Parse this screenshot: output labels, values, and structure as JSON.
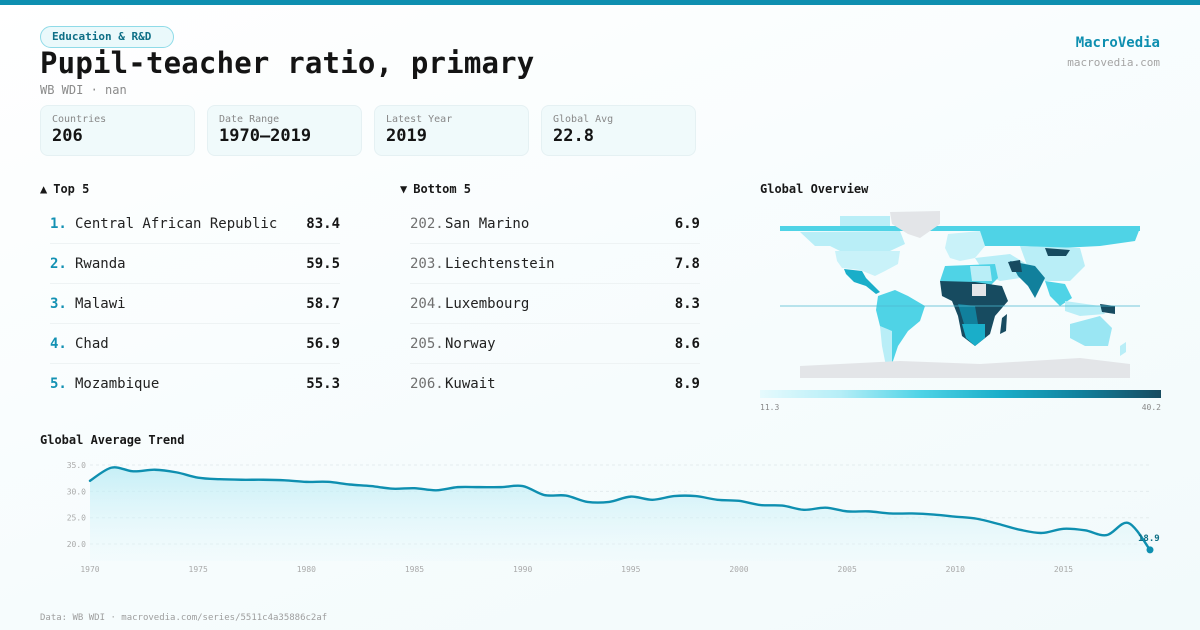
{
  "header": {
    "category_badge": "Education & R&D",
    "title": "Pupil-teacher ratio, primary",
    "subtitle": "WB WDI · nan"
  },
  "brand": {
    "name": "MacroVedia",
    "url": "macrovedia.com"
  },
  "stats": [
    {
      "label": "Countries",
      "value": "206"
    },
    {
      "label": "Date Range",
      "value": "1970–2019"
    },
    {
      "label": "Latest Year",
      "value": "2019"
    },
    {
      "label": "Global Avg",
      "value": "22.8"
    }
  ],
  "top5": {
    "icon": "▲",
    "heading": "Top 5",
    "items": [
      {
        "rank": "1.",
        "name": "Central African Republic",
        "value": "83.4"
      },
      {
        "rank": "2.",
        "name": "Rwanda",
        "value": "59.5"
      },
      {
        "rank": "3.",
        "name": "Malawi",
        "value": "58.7"
      },
      {
        "rank": "4.",
        "name": "Chad",
        "value": "56.9"
      },
      {
        "rank": "5.",
        "name": "Mozambique",
        "value": "55.3"
      }
    ]
  },
  "bottom5": {
    "icon": "▼",
    "heading": "Bottom 5",
    "items": [
      {
        "rank": "202.",
        "name": "San Marino",
        "value": "6.9"
      },
      {
        "rank": "203.",
        "name": "Liechtenstein",
        "value": "7.8"
      },
      {
        "rank": "204.",
        "name": "Luxembourg",
        "value": "8.3"
      },
      {
        "rank": "205.",
        "name": "Norway",
        "value": "8.6"
      },
      {
        "rank": "206.",
        "name": "Kuwait",
        "value": "8.9"
      }
    ]
  },
  "map": {
    "title": "Global Overview",
    "legend_min": "11.3",
    "legend_max": "40.2",
    "colors": {
      "no_data": "#e3e5e8",
      "low": "#b9eef7",
      "mid_low": "#4fd3e6",
      "mid": "#1aaec9",
      "mid_high": "#11809c",
      "high": "#174b60"
    }
  },
  "trend": {
    "title": "Global Average Trend",
    "last_label": "18.9",
    "line_color": "#0e8fb0"
  },
  "chart_data": {
    "type": "area",
    "title": "Global Average Trend",
    "xlabel": "",
    "ylabel": "",
    "x": [
      1970,
      1971,
      1972,
      1973,
      1974,
      1975,
      1976,
      1977,
      1978,
      1979,
      1980,
      1981,
      1982,
      1983,
      1984,
      1985,
      1986,
      1987,
      1988,
      1989,
      1990,
      1991,
      1992,
      1993,
      1994,
      1995,
      1996,
      1997,
      1998,
      1999,
      2000,
      2001,
      2002,
      2003,
      2004,
      2005,
      2006,
      2007,
      2008,
      2009,
      2010,
      2011,
      2012,
      2013,
      2014,
      2015,
      2016,
      2017,
      2018,
      2019
    ],
    "series": [
      {
        "name": "Global Average",
        "values": [
          32.0,
          34.5,
          33.8,
          34.1,
          33.6,
          32.6,
          32.3,
          32.2,
          32.2,
          32.1,
          31.8,
          31.8,
          31.3,
          31.0,
          30.5,
          30.6,
          30.2,
          30.8,
          30.8,
          30.8,
          31.0,
          29.3,
          29.2,
          28.0,
          28.0,
          29.0,
          28.4,
          29.1,
          29.1,
          28.4,
          28.2,
          27.4,
          27.3,
          26.5,
          26.9,
          26.2,
          26.2,
          25.8,
          25.8,
          25.6,
          25.2,
          24.8,
          23.8,
          22.7,
          22.1,
          22.9,
          22.6,
          21.7,
          24.0,
          18.9
        ]
      }
    ],
    "y_ticks": [
      "20.0",
      "25.0",
      "30.0",
      "35.0"
    ],
    "x_ticks": [
      "1970",
      "1975",
      "1980",
      "1985",
      "1990",
      "1995",
      "2000",
      "2005",
      "2010",
      "2015"
    ],
    "ylim": [
      16.8,
      35.0
    ],
    "xlim": [
      1970,
      2019
    ],
    "grid": true,
    "end_label": "18.9"
  },
  "footer": {
    "text": "Data: WB WDI · macrovedia.com/series/5511c4a35886c2af"
  }
}
